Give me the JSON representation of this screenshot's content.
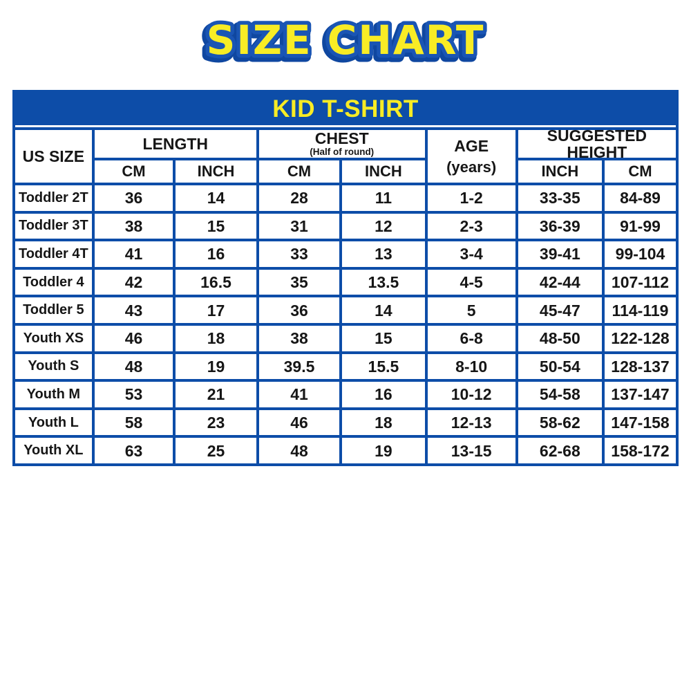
{
  "title": "SIZE CHART",
  "banner": "KID T-SHIRT",
  "header": {
    "us_size": "US SIZE",
    "length": "LENGTH",
    "chest": "CHEST",
    "chest_sub": "(Half of round)",
    "age": "AGE",
    "age_sub": "(years)",
    "suggested_height": "SUGGESTED HEIGHT",
    "cm": "CM",
    "inch": "INCH"
  },
  "colors": {
    "brand_blue": "#0d4da8",
    "accent_yellow": "#f8ec25",
    "cell_text": "#161616",
    "cell_background": "#ffffff"
  },
  "chart_data": {
    "type": "table",
    "title": "KID T-SHIRT",
    "column_groups": [
      {
        "label": "US SIZE",
        "columns": [
          "US SIZE"
        ]
      },
      {
        "label": "LENGTH",
        "columns": [
          "CM",
          "INCH"
        ]
      },
      {
        "label": "CHEST (Half of round)",
        "columns": [
          "CM",
          "INCH"
        ]
      },
      {
        "label": "AGE (years)",
        "columns": [
          "AGE (years)"
        ]
      },
      {
        "label": "SUGGESTED HEIGHT",
        "columns": [
          "INCH",
          "CM"
        ]
      }
    ],
    "columns": [
      "US SIZE",
      "LENGTH CM",
      "LENGTH INCH",
      "CHEST CM",
      "CHEST INCH",
      "AGE (years)",
      "SUGGESTED HEIGHT INCH",
      "SUGGESTED HEIGHT CM"
    ],
    "rows": [
      [
        "Toddler 2T",
        "36",
        "14",
        "28",
        "11",
        "1-2",
        "33-35",
        "84-89"
      ],
      [
        "Toddler 3T",
        "38",
        "15",
        "31",
        "12",
        "2-3",
        "36-39",
        "91-99"
      ],
      [
        "Toddler 4T",
        "41",
        "16",
        "33",
        "13",
        "3-4",
        "39-41",
        "99-104"
      ],
      [
        "Toddler 4",
        "42",
        "16.5",
        "35",
        "13.5",
        "4-5",
        "42-44",
        "107-112"
      ],
      [
        "Toddler 5",
        "43",
        "17",
        "36",
        "14",
        "5",
        "45-47",
        "114-119"
      ],
      [
        "Youth XS",
        "46",
        "18",
        "38",
        "15",
        "6-8",
        "48-50",
        "122-128"
      ],
      [
        "Youth S",
        "48",
        "19",
        "39.5",
        "15.5",
        "8-10",
        "50-54",
        "128-137"
      ],
      [
        "Youth M",
        "53",
        "21",
        "41",
        "16",
        "10-12",
        "54-58",
        "137-147"
      ],
      [
        "Youth L",
        "58",
        "23",
        "46",
        "18",
        "12-13",
        "58-62",
        "147-158"
      ],
      [
        "Youth XL",
        "63",
        "25",
        "48",
        "19",
        "13-15",
        "62-68",
        "158-172"
      ]
    ]
  }
}
